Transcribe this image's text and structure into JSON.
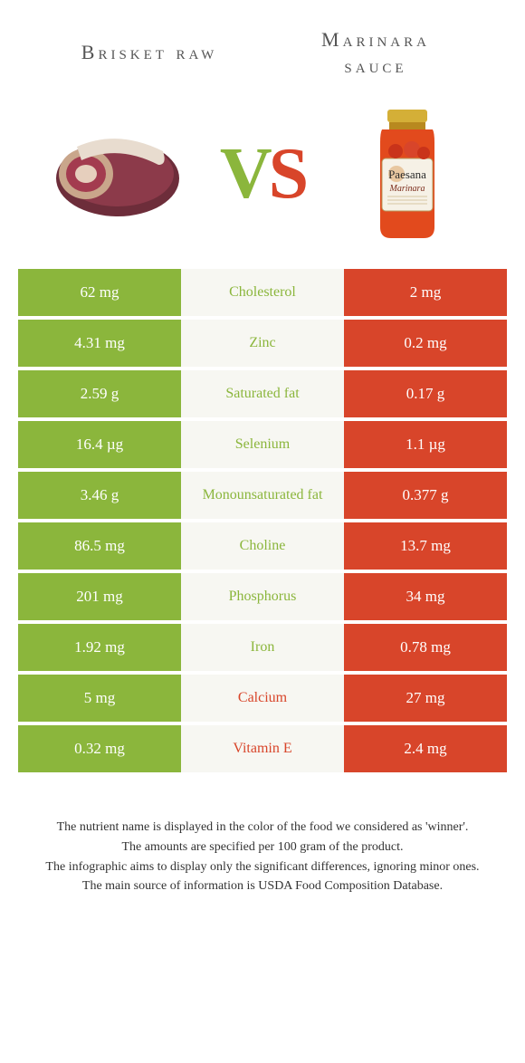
{
  "header": {
    "left_title": "Brisket raw",
    "right_title_line1": "Marinara",
    "right_title_line2": "sauce",
    "vs_left": "V",
    "vs_right": "S"
  },
  "hero": {
    "left_food_name": "brisket",
    "right_food_name": "marinara-jar",
    "jar_label_brand": "Paesana",
    "jar_label_sub": "Marinara"
  },
  "colors": {
    "green": "#8bb63c",
    "red": "#d8452a",
    "mid_bg": "#f7f7f2",
    "page_bg": "#ffffff"
  },
  "rows": [
    {
      "nutrient": "Cholesterol",
      "left": "62 mg",
      "right": "2 mg",
      "winner": "left"
    },
    {
      "nutrient": "Zinc",
      "left": "4.31 mg",
      "right": "0.2 mg",
      "winner": "left"
    },
    {
      "nutrient": "Saturated fat",
      "left": "2.59 g",
      "right": "0.17 g",
      "winner": "left"
    },
    {
      "nutrient": "Selenium",
      "left": "16.4 µg",
      "right": "1.1 µg",
      "winner": "left"
    },
    {
      "nutrient": "Monounsaturated fat",
      "left": "3.46 g",
      "right": "0.377 g",
      "winner": "left"
    },
    {
      "nutrient": "Choline",
      "left": "86.5 mg",
      "right": "13.7 mg",
      "winner": "left"
    },
    {
      "nutrient": "Phosphorus",
      "left": "201 mg",
      "right": "34 mg",
      "winner": "left"
    },
    {
      "nutrient": "Iron",
      "left": "1.92 mg",
      "right": "0.78 mg",
      "winner": "left"
    },
    {
      "nutrient": "Calcium",
      "left": "5 mg",
      "right": "27 mg",
      "winner": "right"
    },
    {
      "nutrient": "Vitamin E",
      "left": "0.32 mg",
      "right": "2.4 mg",
      "winner": "right"
    }
  ],
  "footnote": {
    "l1": "The nutrient name is displayed in the color of the food we considered as 'winner'.",
    "l2": "The amounts are specified per 100 gram of the product.",
    "l3": "The infographic aims to display only the significant differences, ignoring minor ones.",
    "l4": "The main source of information is USDA Food Composition Database."
  }
}
